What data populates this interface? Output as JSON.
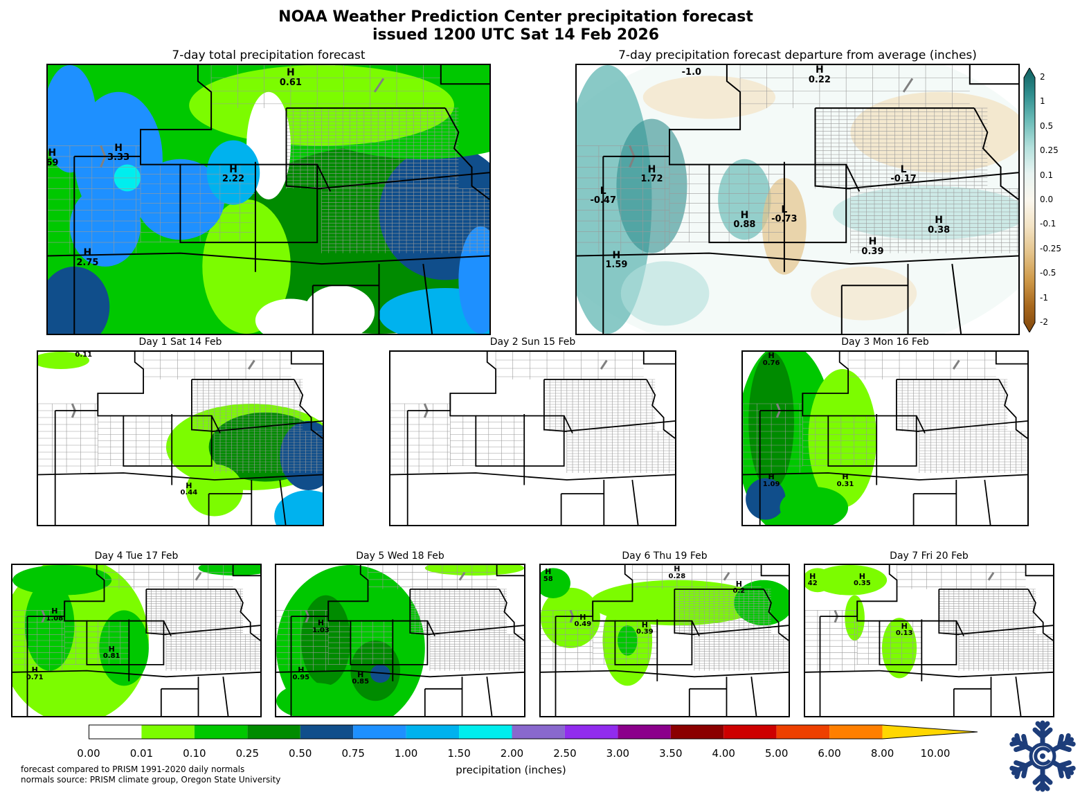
{
  "header": {
    "title_line1": "NOAA Weather Prediction Center precipitation forecast",
    "title_line2": "issued 1200 UTC Sat 14 Feb 2026"
  },
  "total_panel": {
    "title": "7-day total precipitation forecast",
    "markers": [
      {
        "type": "H",
        "value": "0.61"
      },
      {
        "type": "H",
        "value": "69"
      },
      {
        "type": "H",
        "value": "3.33"
      },
      {
        "type": "H",
        "value": "2.22"
      },
      {
        "type": "H",
        "value": "2.75"
      }
    ]
  },
  "departure_panel": {
    "title": "7-day precipitation forecast departure from average (inches)",
    "markers": [
      {
        "type": "",
        "value": "-1.0"
      },
      {
        "type": "H",
        "value": "0.22"
      },
      {
        "type": "H",
        "value": "1.72"
      },
      {
        "type": "L",
        "value": "-0.47"
      },
      {
        "type": "L",
        "value": "-0.17"
      },
      {
        "type": "H",
        "value": "0.88"
      },
      {
        "type": "L",
        "value": "-0.73"
      },
      {
        "type": "H",
        "value": "0.38"
      },
      {
        "type": "H",
        "value": "0.39"
      },
      {
        "type": "H",
        "value": "1.59"
      }
    ],
    "colorbar_ticks": [
      "2",
      "1",
      "0.5",
      "0.25",
      "0.1",
      "0.0",
      "-0.1",
      "-0.25",
      "-0.5",
      "-1",
      "-2"
    ],
    "colorbar_colors": [
      "#0f5f5f",
      "#2f8e8e",
      "#6bbcb8",
      "#b3e0dc",
      "#e8f4f2",
      "#fbf7ee",
      "#f3e3c4",
      "#e4c38a",
      "#cf9a4a",
      "#a8681d",
      "#80460b"
    ]
  },
  "daily_panels": [
    {
      "title": "Day 1  Sat 14 Feb",
      "markers": [
        {
          "type": "",
          "value": "0.11"
        },
        {
          "type": "H",
          "value": "0.44"
        }
      ]
    },
    {
      "title": "Day 2  Sun 15 Feb",
      "markers": []
    },
    {
      "title": "Day 3  Mon 16 Feb",
      "markers": [
        {
          "type": "H",
          "value": "0.76"
        },
        {
          "type": "H",
          "value": "1.09"
        },
        {
          "type": "H",
          "value": "0.31"
        }
      ]
    },
    {
      "title": "Day 4  Tue 17 Feb",
      "markers": [
        {
          "type": "H",
          "value": "1.08"
        },
        {
          "type": "H",
          "value": "0.81"
        },
        {
          "type": "H",
          "value": "0.71"
        }
      ]
    },
    {
      "title": "Day 5  Wed 18 Feb",
      "markers": [
        {
          "type": "H",
          "value": "1.03"
        },
        {
          "type": "H",
          "value": "0.95"
        },
        {
          "type": "H",
          "value": "0.85"
        }
      ]
    },
    {
      "title": "Day 6  Thu 19 Feb",
      "markers": [
        {
          "type": "H",
          "value": "58"
        },
        {
          "type": "H",
          "value": "0.28"
        },
        {
          "type": "H",
          "value": "0.2"
        },
        {
          "type": "H",
          "value": "0.49"
        },
        {
          "type": "H",
          "value": "0.39"
        }
      ]
    },
    {
      "title": "Day 7  Fri 20 Feb",
      "markers": [
        {
          "type": "H",
          "value": "42"
        },
        {
          "type": "H",
          "value": "0.35"
        },
        {
          "type": "H",
          "value": "0.13"
        }
      ]
    }
  ],
  "legend": {
    "label": "precipitation (inches)",
    "ticks": [
      "0.00",
      "0.01",
      "0.10",
      "0.25",
      "0.50",
      "0.75",
      "1.00",
      "1.50",
      "2.00",
      "2.50",
      "3.00",
      "3.50",
      "4.00",
      "5.00",
      "6.00",
      "8.00",
      "10.00"
    ],
    "colors": [
      "#ffffff",
      "#7cfc00",
      "#00c800",
      "#008b00",
      "#104e8b",
      "#1e90ff",
      "#00b2ee",
      "#00eeee",
      "#8968cd",
      "#912cee",
      "#8b008b",
      "#8b0000",
      "#cd0000",
      "#ee4000",
      "#ff7f00",
      "#ffd700"
    ]
  },
  "footnote": {
    "line1": "forecast compared to PRISM 1991-2020 daily normals",
    "line2": "normals source: PRISM climate group, Oregon State University"
  },
  "logo": {
    "icon": "snowflake-logo-icon"
  }
}
